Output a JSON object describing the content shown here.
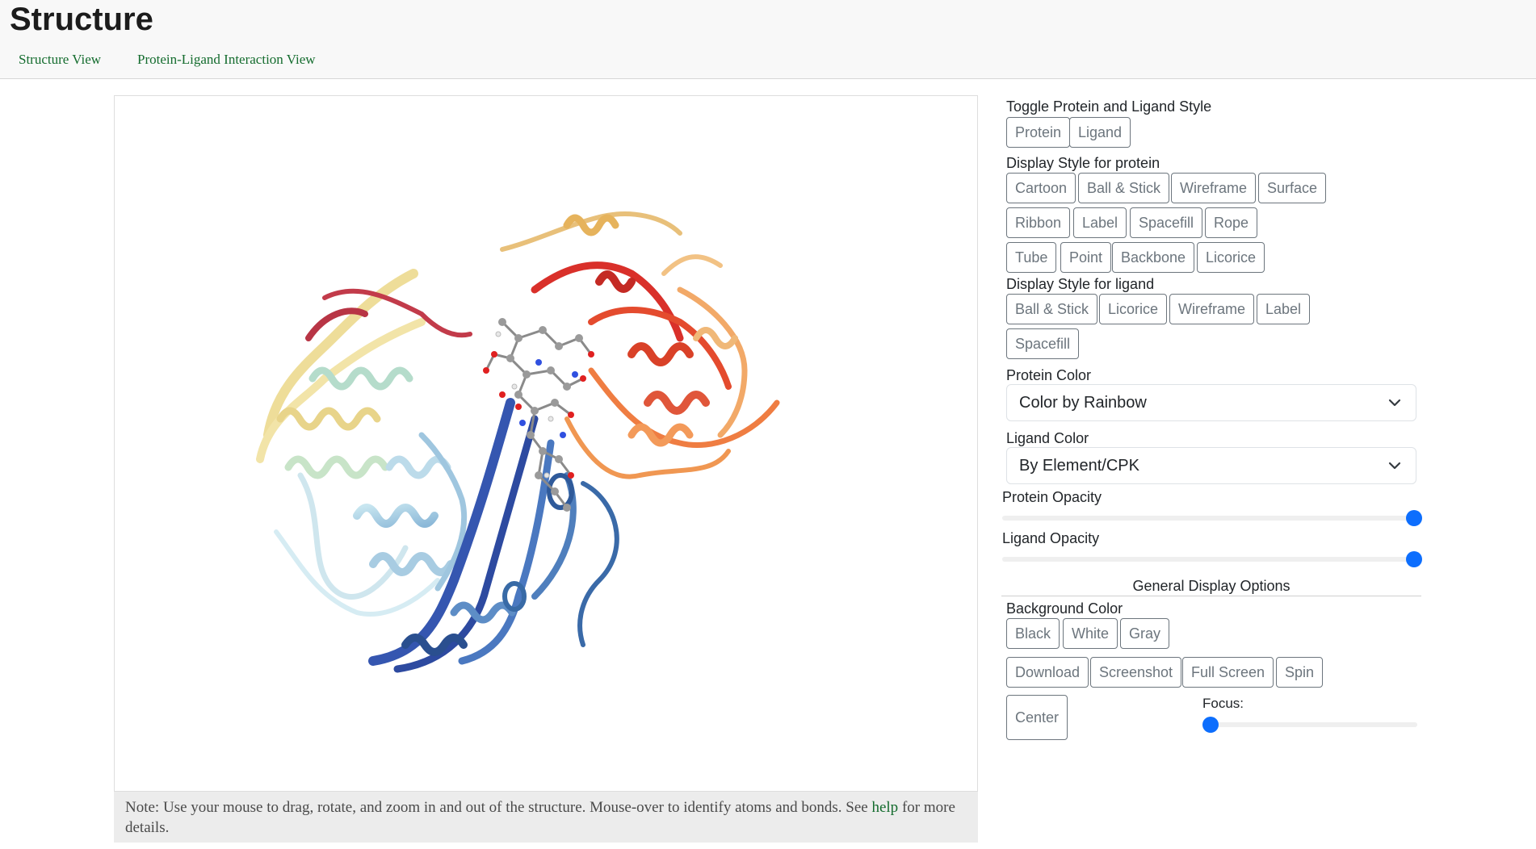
{
  "page_title": "Structure",
  "tabs": [
    {
      "label": "Structure View"
    },
    {
      "label": "Protein-Ligand Interaction View"
    }
  ],
  "viewer": {
    "note_text": "Note: Use your mouse to drag, rotate, and zoom in and out of the structure. Mouse-over to identify atoms and bonds. See ",
    "note_link": "help",
    "note_suffix": " for more details."
  },
  "controls": {
    "toggle_label": "Toggle Protein and Ligand Style",
    "toggle_buttons": [
      "Protein",
      "Ligand"
    ],
    "protein_style_label": "Display Style for protein",
    "protein_styles": [
      "Cartoon",
      "Ball & Stick",
      "Wireframe",
      "Surface",
      "Ribbon",
      "Label",
      "Spacefill",
      "Rope",
      "Tube",
      "Point",
      "Backbone",
      "Licorice"
    ],
    "ligand_style_label": "Display Style for ligand",
    "ligand_styles": [
      "Ball & Stick",
      "Licorice",
      "Wireframe",
      "Label",
      "Spacefill"
    ],
    "protein_color_label": "Protein Color",
    "protein_color_value": "Color by Rainbow",
    "ligand_color_label": "Ligand Color",
    "ligand_color_value": "By Element/CPK",
    "protein_opacity_label": "Protein Opacity",
    "protein_opacity": 1.0,
    "ligand_opacity_label": "Ligand Opacity",
    "ligand_opacity": 1.0,
    "general_title": "General Display Options",
    "background_label": "Background Color",
    "background_buttons": [
      "Black",
      "White",
      "Gray"
    ],
    "action_buttons": [
      "Download",
      "Screenshot",
      "Full Screen",
      "Spin"
    ],
    "center_button": "Center",
    "focus_label": "Focus:",
    "focus_value": 0.0
  },
  "colors": {
    "link": "#146c2e",
    "slider": "#0d6efd",
    "button_border": "#6c757d"
  }
}
